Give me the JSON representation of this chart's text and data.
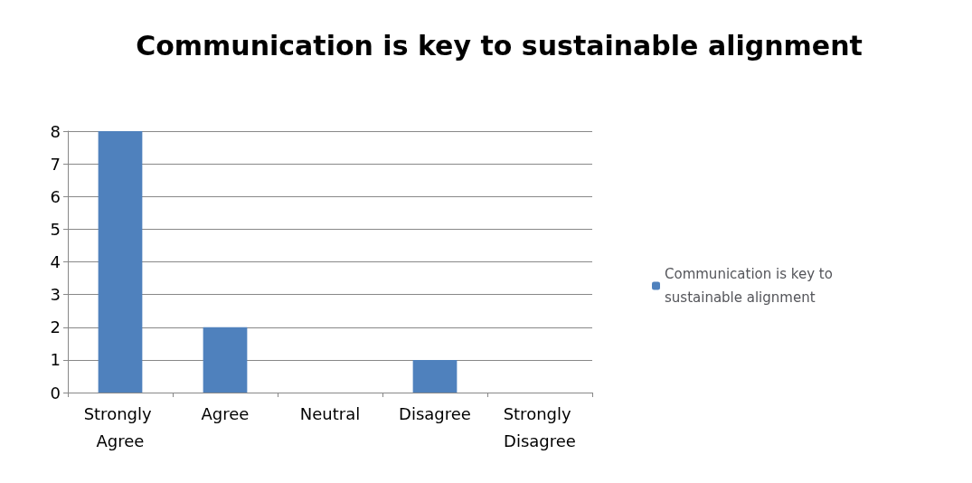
{
  "chart_data": {
    "type": "bar",
    "title": "Communication is key to sustainable alignment",
    "categories": [
      "Strongly Agree",
      "Agree",
      "Neutral",
      "Disagree",
      "Strongly Disagree"
    ],
    "series": [
      {
        "name": "Communication is key to sustainable alignment",
        "color": "#4f81bd",
        "values": [
          8,
          2,
          0,
          1,
          0
        ]
      }
    ],
    "ylim": [
      0,
      8
    ],
    "yticks": [
      0,
      1,
      2,
      3,
      4,
      5,
      6,
      7,
      8
    ],
    "grid": "y",
    "legend": "right"
  }
}
